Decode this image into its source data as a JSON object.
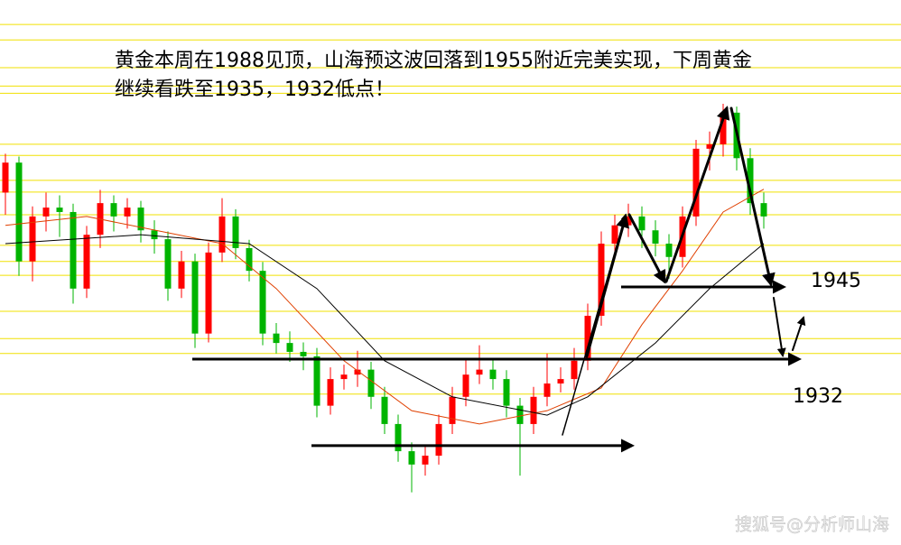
{
  "chart_data": {
    "type": "candlestick",
    "title_lines": [
      "黄金本周在1988见顶，山海预这波回落到1955附近完美实现，下周黄金",
      "继续看跌至1935，1932低点！"
    ],
    "watermark": "搜狐号@分析师山海",
    "ylim": [
      1898.5,
      1996.7
    ],
    "up_color": "#ff0000",
    "down_color": "#00b400",
    "open": [
      1962.0,
      1967.4,
      1949.6,
      1957.7,
      1959.3,
      1958.5,
      1944.7,
      1954.4,
      1960.1,
      1957.7,
      1959.3,
      1955.2,
      1953.6,
      1944.7,
      1949.6,
      1936.6,
      1951.2,
      1957.7,
      1952.0,
      1947.9,
      1936.6,
      1934.9,
      1933.3,
      1932.5,
      1923.6,
      1928.4,
      1929.2,
      1930.1,
      1925.2,
      1920.3,
      1915.4,
      1913.0,
      1914.6,
      1920.3,
      1925.2,
      1929.2,
      1930.1,
      1928.4,
      1923.6,
      1920.3,
      1925.2,
      1927.6,
      1928.4,
      1931.7,
      1939.8,
      1952.8,
      1956.1,
      1957.7,
      1955.2,
      1952.8,
      1950.4,
      1957.7,
      1969.9,
      1970.7,
      1976.4,
      1968.2,
      1960.1
    ],
    "high": [
      1969.0,
      1968.5,
      1959.5,
      1962.0,
      1961.5,
      1960.0,
      1956.0,
      1962.5,
      1961.5,
      1961.0,
      1960.5,
      1957.0,
      1955.0,
      1951.5,
      1951.0,
      1953.0,
      1961.0,
      1959.0,
      1953.5,
      1949.5,
      1938.5,
      1937.0,
      1935.0,
      1934.0,
      1930.5,
      1931.0,
      1933.5,
      1931.5,
      1927.0,
      1922.0,
      1917.0,
      1916.5,
      1922.0,
      1927.0,
      1932.0,
      1934.5,
      1932.0,
      1930.0,
      1925.0,
      1927.0,
      1933.0,
      1930.5,
      1934.0,
      1942.0,
      1955.0,
      1958.0,
      1960.0,
      1959.5,
      1957.0,
      1954.5,
      1959.5,
      1971.5,
      1973.0,
      1978.0,
      1977.5,
      1970.0,
      1962.0
    ],
    "low": [
      1958.0,
      1947.0,
      1946.0,
      1955.0,
      1954.0,
      1942.0,
      1943.0,
      1952.0,
      1955.0,
      1955.5,
      1953.0,
      1951.0,
      1942.5,
      1943.0,
      1934.0,
      1935.0,
      1949.5,
      1950.0,
      1946.0,
      1934.5,
      1933.0,
      1931.5,
      1930.0,
      1921.5,
      1922.0,
      1926.5,
      1927.0,
      1923.0,
      1918.5,
      1913.5,
      1908.0,
      1911.0,
      1913.0,
      1918.5,
      1923.5,
      1927.5,
      1926.5,
      1921.5,
      1911.0,
      1918.5,
      1923.5,
      1926.0,
      1926.5,
      1930.0,
      1938.0,
      1950.5,
      1954.0,
      1952.0,
      1950.5,
      1946.5,
      1948.5,
      1956.0,
      1966.0,
      1968.5,
      1966.0,
      1958.0,
      1955.5
    ],
    "close": [
      1967.4,
      1949.6,
      1957.7,
      1959.3,
      1958.5,
      1944.7,
      1954.4,
      1960.1,
      1957.7,
      1959.3,
      1955.2,
      1953.6,
      1944.7,
      1949.6,
      1936.6,
      1951.2,
      1957.7,
      1952.0,
      1947.9,
      1936.6,
      1934.9,
      1933.3,
      1932.5,
      1923.6,
      1928.4,
      1929.2,
      1930.1,
      1925.2,
      1920.3,
      1915.4,
      1913.0,
      1914.6,
      1920.3,
      1925.2,
      1929.2,
      1930.1,
      1928.4,
      1923.6,
      1920.3,
      1925.2,
      1927.6,
      1928.4,
      1931.7,
      1939.8,
      1952.8,
      1956.1,
      1957.7,
      1955.2,
      1952.8,
      1950.4,
      1957.7,
      1969.9,
      1970.7,
      1976.4,
      1968.2,
      1960.1,
      1957.7
    ],
    "moving_averages": [
      {
        "color": "#e04000",
        "x": [
          0,
          6,
          16,
          20,
          25,
          30,
          35,
          40,
          44,
          47,
          50,
          53,
          56
        ],
        "values": [
          1956.1,
          1957.7,
          1952.8,
          1944.7,
          1931.7,
          1922.7,
          1920.3,
          1922.7,
          1926.8,
          1938.2,
          1947.9,
          1958.5,
          1962.6
        ]
      },
      {
        "color": "#000000",
        "x": [
          0,
          10,
          18,
          23,
          28,
          33,
          40,
          43,
          48,
          52,
          56
        ],
        "values": [
          1952.8,
          1954.4,
          1952.8,
          1944.7,
          1931.7,
          1925.2,
          1921.9,
          1925.2,
          1934.9,
          1944.7,
          1952.8
        ]
      }
    ],
    "levels": [
      1992.3,
      1989.5,
      1984.5,
      1981.2,
      1979.9,
      1970.7,
      1968.7,
      1964.2,
      1962.1,
      1958.0,
      1952.5,
      1949.6,
      1947.1,
      1940.6,
      1935.7,
      1933.0,
      1925.7
    ],
    "level_color": "#f0e000",
    "targets": [
      1945,
      1932
    ],
    "support": 1916.4
  }
}
